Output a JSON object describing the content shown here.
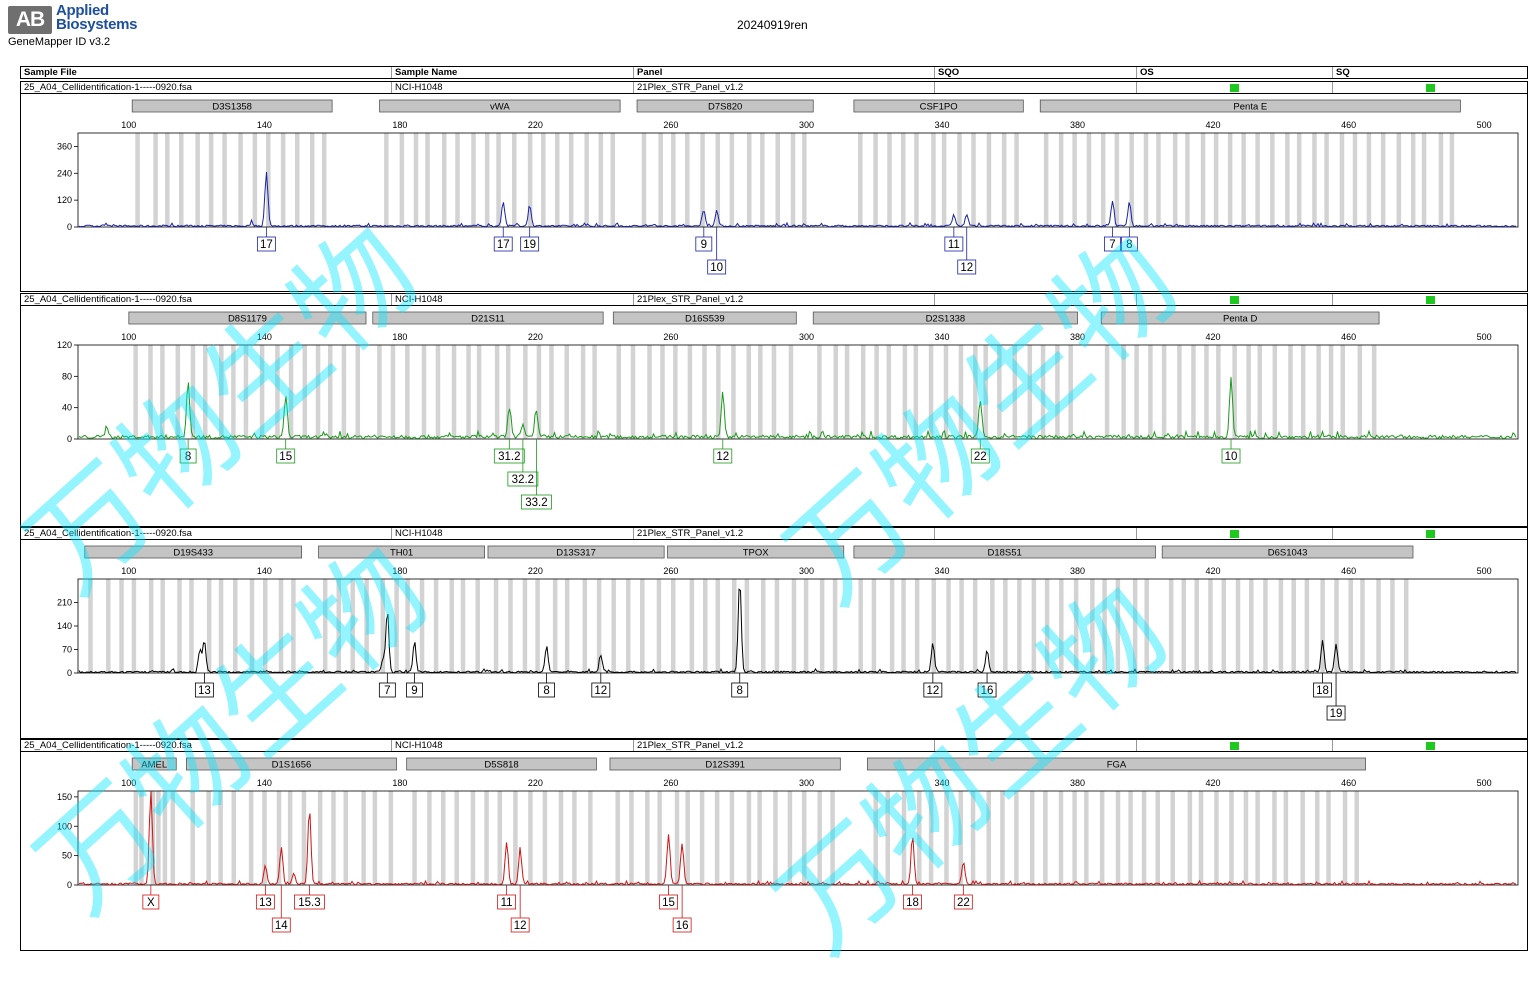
{
  "header": {
    "logo_mark": "AB",
    "logo_line1": "Applied",
    "logo_line2": "Biosystems",
    "software": "GeneMapper ID v3.2",
    "report_title": "20240919ren"
  },
  "table_header": {
    "sample_file": "Sample File",
    "sample_name": "Sample Name",
    "panel": "Panel",
    "sqo": "SQO",
    "os": "OS",
    "sq": "SQ"
  },
  "watermark_text": "万物生物",
  "colors": {
    "flag": "#1ec81e",
    "bin": "#d3d3d3",
    "watermark": "#00e5ff"
  },
  "chart_data": [
    {
      "type": "line",
      "dye": "blue",
      "color": "#1a22a8",
      "sample_file": "25_A04_Cellidentification-1-----0920.fsa",
      "sample_name": "NCI-H1048",
      "panel": "21Plex_STR_Panel_v1.2",
      "xlim": [
        85,
        510
      ],
      "xticks": [
        100,
        140,
        180,
        220,
        260,
        300,
        340,
        380,
        420,
        460,
        500
      ],
      "ylim": [
        0,
        420
      ],
      "yticks": [
        0,
        120,
        240,
        360
      ],
      "markers": [
        {
          "name": "D3S1358",
          "start": 101,
          "end": 160
        },
        {
          "name": "vWA",
          "start": 174,
          "end": 245
        },
        {
          "name": "D7S820",
          "start": 250,
          "end": 302
        },
        {
          "name": "CSF1PO",
          "start": 314,
          "end": 364
        },
        {
          "name": "Penta E",
          "start": 369,
          "end": 493
        }
      ],
      "peaks": [
        {
          "x": 140.6,
          "h": 240
        },
        {
          "x": 136.3,
          "h": 14
        },
        {
          "x": 210.5,
          "h": 110
        },
        {
          "x": 218.3,
          "h": 92
        },
        {
          "x": 214.5,
          "h": 8
        },
        {
          "x": 269.7,
          "h": 70
        },
        {
          "x": 273.5,
          "h": 70
        },
        {
          "x": 343.5,
          "h": 52
        },
        {
          "x": 347.3,
          "h": 52
        },
        {
          "x": 390.3,
          "h": 110
        },
        {
          "x": 395.3,
          "h": 110
        }
      ],
      "alleles": [
        {
          "x": 140.6,
          "label": "17",
          "tier": 0
        },
        {
          "x": 210.5,
          "label": "17",
          "tier": 0
        },
        {
          "x": 218.3,
          "label": "19",
          "tier": 0
        },
        {
          "x": 269.7,
          "label": "9",
          "tier": 0
        },
        {
          "x": 273.5,
          "label": "10",
          "tier": 1
        },
        {
          "x": 343.5,
          "label": "11",
          "tier": 0
        },
        {
          "x": 347.3,
          "label": "12",
          "tier": 1
        },
        {
          "x": 390.3,
          "label": "7",
          "tier": 0
        },
        {
          "x": 395.3,
          "label": "8",
          "tier": 0
        }
      ]
    },
    {
      "type": "line",
      "dye": "green",
      "color": "#1a9a1a",
      "sample_file": "25_A04_Cellidentification-1-----0920.fsa",
      "sample_name": "NCI-H1048",
      "panel": "21Plex_STR_Panel_v1.2",
      "xlim": [
        85,
        510
      ],
      "xticks": [
        100,
        140,
        180,
        220,
        260,
        300,
        340,
        380,
        420,
        460,
        500
      ],
      "ylim": [
        0,
        120
      ],
      "yticks": [
        0,
        40,
        80,
        120
      ],
      "markers": [
        {
          "name": "D8S1179",
          "start": 100,
          "end": 170
        },
        {
          "name": "D21S11",
          "start": 172,
          "end": 240
        },
        {
          "name": "D16S539",
          "start": 243,
          "end": 297
        },
        {
          "name": "D2S1338",
          "start": 302,
          "end": 380
        },
        {
          "name": "Penta D",
          "start": 387,
          "end": 469
        }
      ],
      "peaks": [
        {
          "x": 117.5,
          "h": 72
        },
        {
          "x": 146.3,
          "h": 53
        },
        {
          "x": 93.5,
          "h": 14
        },
        {
          "x": 212.3,
          "h": 38
        },
        {
          "x": 216.3,
          "h": 18
        },
        {
          "x": 220.3,
          "h": 32
        },
        {
          "x": 275.3,
          "h": 58
        },
        {
          "x": 351.3,
          "h": 48
        },
        {
          "x": 425.3,
          "h": 77
        }
      ],
      "alleles": [
        {
          "x": 117.5,
          "label": "8",
          "tier": 0
        },
        {
          "x": 146.3,
          "label": "15",
          "tier": 0
        },
        {
          "x": 212.3,
          "label": "31.2",
          "tier": 0
        },
        {
          "x": 216.3,
          "label": "32.2",
          "tier": 1
        },
        {
          "x": 220.3,
          "label": "33.2",
          "tier": 2
        },
        {
          "x": 275.3,
          "label": "12",
          "tier": 0
        },
        {
          "x": 351.3,
          "label": "22",
          "tier": 0
        },
        {
          "x": 425.3,
          "label": "10",
          "tier": 0
        }
      ]
    },
    {
      "type": "line",
      "dye": "yellow",
      "color": "#000000",
      "sample_file": "25_A04_Cellidentification-1-----0920.fsa",
      "sample_name": "NCI-H1048",
      "panel": "21Plex_STR_Panel_v1.2",
      "xlim": [
        85,
        510
      ],
      "xticks": [
        100,
        140,
        180,
        220,
        260,
        300,
        340,
        380,
        420,
        460,
        500
      ],
      "ylim": [
        0,
        280
      ],
      "yticks": [
        0,
        70,
        140,
        210
      ],
      "markers": [
        {
          "name": "D19S433",
          "start": 87,
          "end": 151
        },
        {
          "name": "TH01",
          "start": 156,
          "end": 205
        },
        {
          "name": "D13S317",
          "start": 206,
          "end": 258
        },
        {
          "name": "TPOX",
          "start": 259,
          "end": 311
        },
        {
          "name": "D18S51",
          "start": 314,
          "end": 403
        },
        {
          "name": "D6S1043",
          "start": 405,
          "end": 479
        }
      ],
      "peaks": [
        {
          "x": 122.3,
          "h": 95
        },
        {
          "x": 121.0,
          "h": 65
        },
        {
          "x": 176.3,
          "h": 180
        },
        {
          "x": 175.0,
          "h": 40
        },
        {
          "x": 184.3,
          "h": 85
        },
        {
          "x": 223.3,
          "h": 78
        },
        {
          "x": 239.3,
          "h": 50
        },
        {
          "x": 280.3,
          "h": 278
        },
        {
          "x": 337.3,
          "h": 85
        },
        {
          "x": 353.3,
          "h": 66
        },
        {
          "x": 452.3,
          "h": 95
        },
        {
          "x": 456.3,
          "h": 85
        }
      ],
      "alleles": [
        {
          "x": 122.3,
          "label": "13",
          "tier": 0
        },
        {
          "x": 176.3,
          "label": "7",
          "tier": 0
        },
        {
          "x": 184.3,
          "label": "9",
          "tier": 0
        },
        {
          "x": 223.3,
          "label": "8",
          "tier": 0
        },
        {
          "x": 239.3,
          "label": "12",
          "tier": 0
        },
        {
          "x": 280.3,
          "label": "8",
          "tier": 0
        },
        {
          "x": 337.3,
          "label": "12",
          "tier": 0
        },
        {
          "x": 353.3,
          "label": "16",
          "tier": 0
        },
        {
          "x": 452.3,
          "label": "18",
          "tier": 0
        },
        {
          "x": 456.3,
          "label": "19",
          "tier": 1
        }
      ]
    },
    {
      "type": "line",
      "dye": "red",
      "color": "#d01414",
      "sample_file": "25_A04_Cellidentification-1-----0920.fsa",
      "sample_name": "NCI-H1048",
      "panel": "21Plex_STR_Panel_v1.2",
      "xlim": [
        85,
        510
      ],
      "xticks": [
        100,
        140,
        180,
        220,
        260,
        300,
        340,
        380,
        420,
        460,
        500
      ],
      "ylim": [
        0,
        160
      ],
      "yticks": [
        0,
        50,
        100,
        150
      ],
      "markers": [
        {
          "name": "AMEL",
          "start": 101,
          "end": 114
        },
        {
          "name": "D1S1656",
          "start": 117,
          "end": 179
        },
        {
          "name": "D5S818",
          "start": 182,
          "end": 238
        },
        {
          "name": "D12S391",
          "start": 242,
          "end": 310
        },
        {
          "name": "FGA",
          "start": 318,
          "end": 465
        }
      ],
      "peaks": [
        {
          "x": 106.5,
          "h": 160
        },
        {
          "x": 140.3,
          "h": 32
        },
        {
          "x": 145.0,
          "h": 60
        },
        {
          "x": 148.7,
          "h": 18
        },
        {
          "x": 153.3,
          "h": 128
        },
        {
          "x": 211.5,
          "h": 70
        },
        {
          "x": 215.5,
          "h": 58
        },
        {
          "x": 259.3,
          "h": 85
        },
        {
          "x": 263.3,
          "h": 70
        },
        {
          "x": 331.3,
          "h": 82
        },
        {
          "x": 346.3,
          "h": 38
        }
      ],
      "alleles": [
        {
          "x": 106.5,
          "label": "X",
          "tier": 0
        },
        {
          "x": 140.3,
          "label": "13",
          "tier": 0
        },
        {
          "x": 145.0,
          "label": "14",
          "tier": 1
        },
        {
          "x": 153.3,
          "label": "15.3",
          "tier": 0
        },
        {
          "x": 211.5,
          "label": "11",
          "tier": 0
        },
        {
          "x": 215.5,
          "label": "12",
          "tier": 1
        },
        {
          "x": 259.3,
          "label": "15",
          "tier": 0
        },
        {
          "x": 263.3,
          "label": "16",
          "tier": 1
        },
        {
          "x": 331.3,
          "label": "18",
          "tier": 0
        },
        {
          "x": 346.3,
          "label": "22",
          "tier": 0
        }
      ]
    }
  ]
}
